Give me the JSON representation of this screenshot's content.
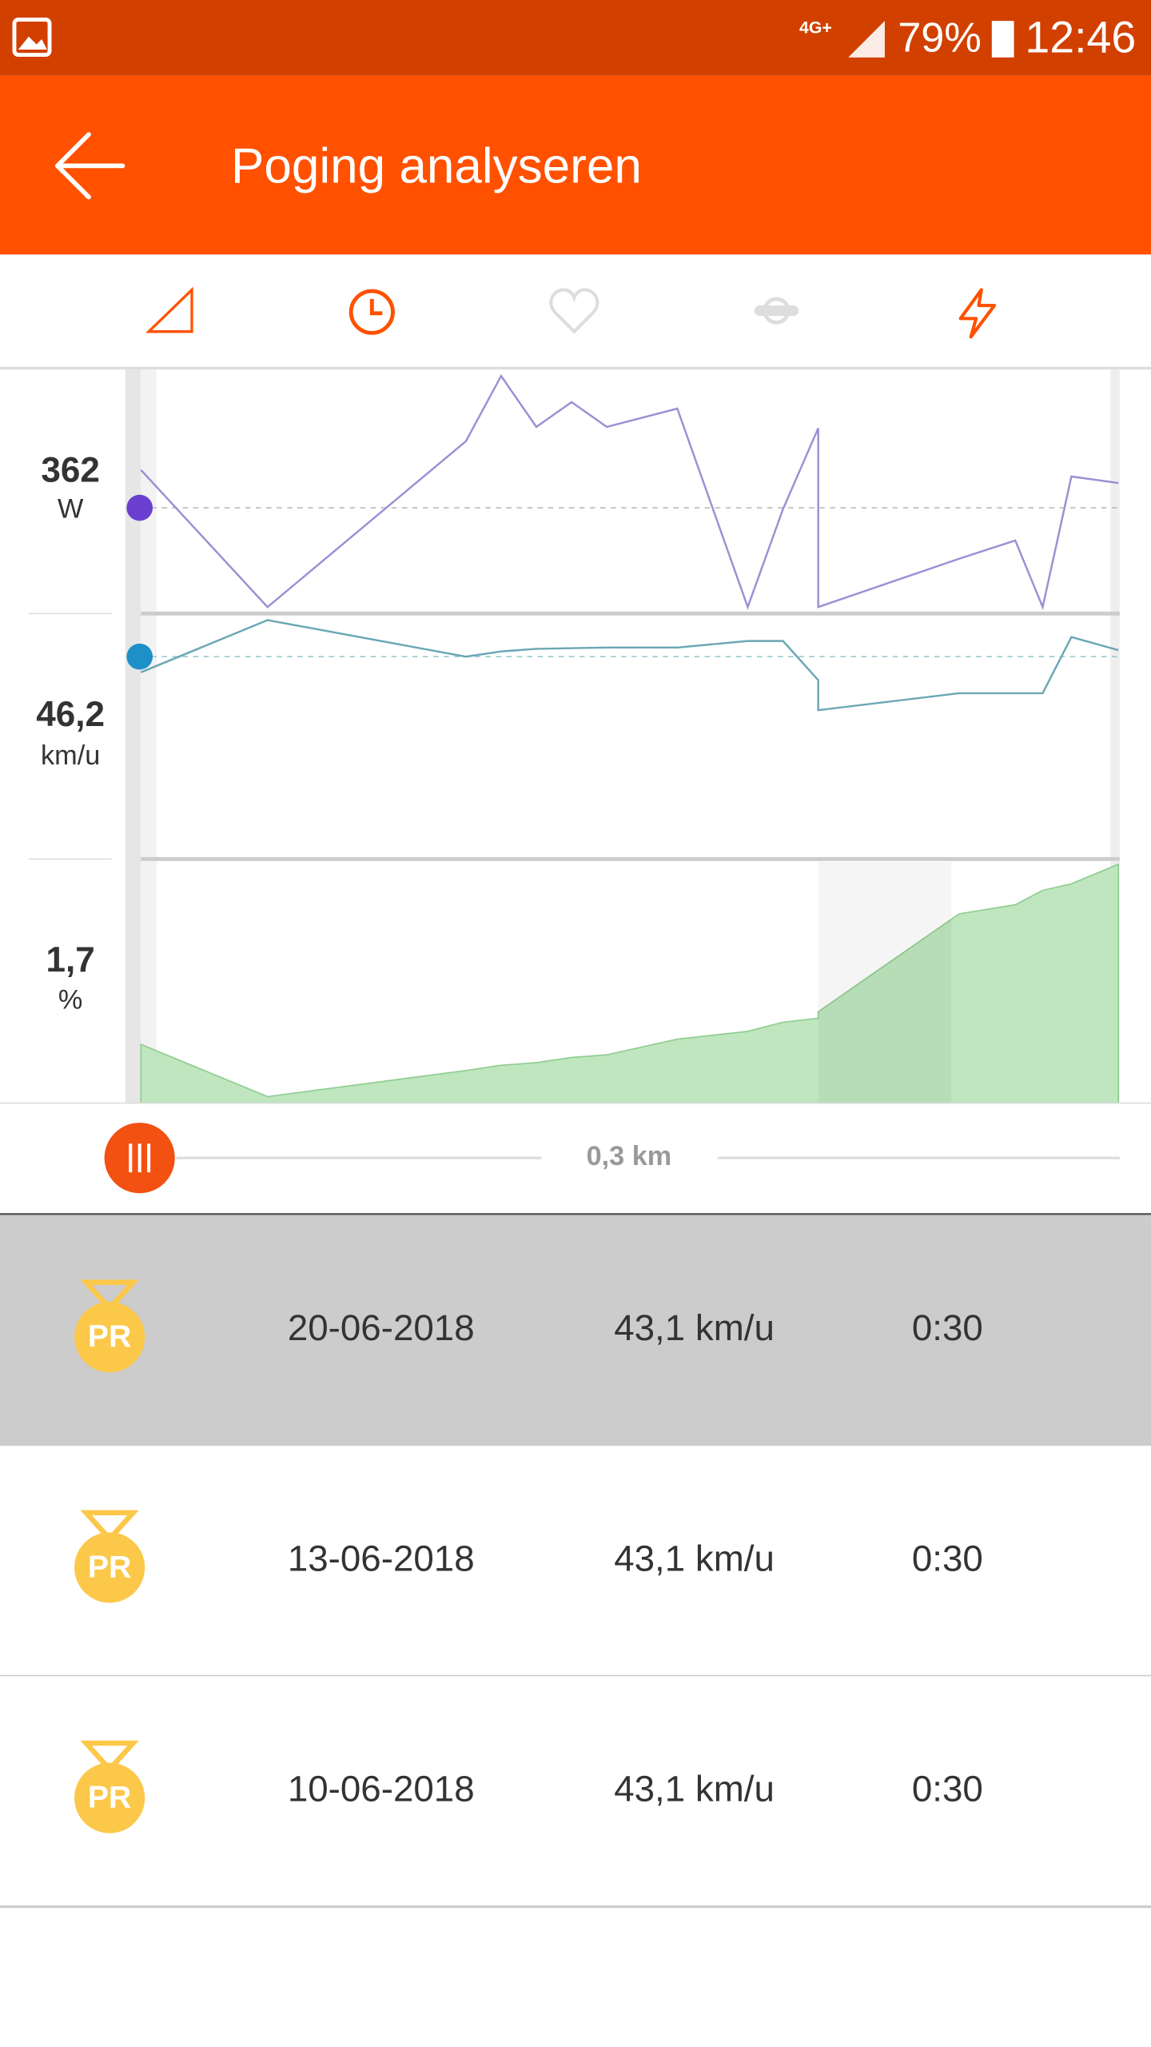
{
  "status_bar": {
    "network": "4G+",
    "battery": "79%",
    "time": "12:46"
  },
  "header": {
    "title": "Poging analyseren"
  },
  "metrics": [
    {
      "value": "362",
      "unit": "W"
    },
    {
      "value": "46,2",
      "unit": "km/u"
    },
    {
      "value": "1,7",
      "unit": "%"
    }
  ],
  "distance_label": "0,3 km",
  "attempts": {
    "rows": [
      {
        "badge": "PR",
        "date": "20-06-2018",
        "speed": "43,1 km/u",
        "time": "0:30"
      },
      {
        "badge": "PR",
        "date": "13-06-2018",
        "speed": "43,1 km/u",
        "time": "0:30"
      },
      {
        "badge": "PR",
        "date": "10-06-2018",
        "speed": "43,1 km/u",
        "time": "0:30"
      }
    ]
  }
}
